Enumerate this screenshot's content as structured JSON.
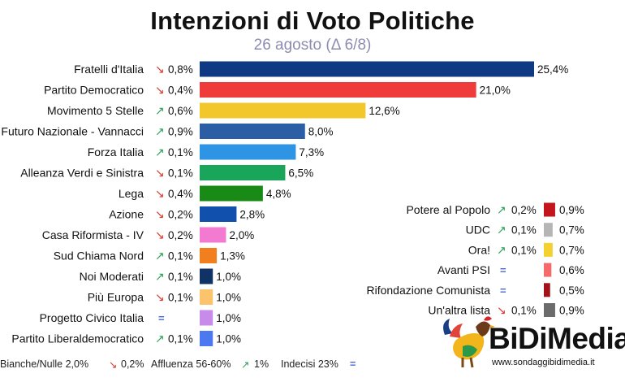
{
  "header": {
    "title": "Intenzioni di Voto Politiche",
    "subtitle": "26 agosto (Δ 6/8)"
  },
  "chart_data": [
    {
      "type": "bar",
      "orientation": "horizontal",
      "categories": [
        "Fratelli d'Italia",
        "Partito Democratico",
        "Movimento 5 Stelle",
        "Futuro Nazionale - Vannacci",
        "Forza Italia",
        "Alleanza Verdi e Sinistra",
        "Lega",
        "Azione",
        "Casa Riformista - IV",
        "Sud Chiama Nord",
        "Noi Moderati",
        "Più Europa",
        "Progetto Civico Italia",
        "Partito Liberaldemocratico"
      ],
      "values": [
        25.4,
        21.0,
        12.6,
        8.0,
        7.3,
        6.5,
        4.8,
        2.8,
        2.0,
        1.3,
        1.0,
        1.0,
        1.0,
        1.0
      ],
      "value_labels": [
        "25,4%",
        "21,0%",
        "12,6%",
        "8,0%",
        "7,3%",
        "6,5%",
        "4,8%",
        "2,8%",
        "2,0%",
        "1,3%",
        "1,0%",
        "1,0%",
        "1,0%",
        "1,0%"
      ],
      "delta_direction": [
        "down",
        "down",
        "up",
        "up",
        "up",
        "down",
        "down",
        "down",
        "down",
        "up",
        "up",
        "down",
        "flat",
        "up"
      ],
      "delta_labels": [
        "0,8%",
        "0,4%",
        "0,6%",
        "0,9%",
        "0,1%",
        "0,1%",
        "0,4%",
        "0,2%",
        "0,2%",
        "0,1%",
        "0,1%",
        "0,1%",
        "",
        "0,1%"
      ],
      "colors": [
        "#0f3a83",
        "#f03b3b",
        "#f1c72b",
        "#2c5ea5",
        "#2e95e4",
        "#19a55a",
        "#188a15",
        "#1150ad",
        "#f37ad1",
        "#f27f1e",
        "#113264",
        "#fbc36c",
        "#c78bea",
        "#4c78f0"
      ]
    },
    {
      "type": "bar",
      "orientation": "horizontal",
      "categories": [
        "Potere al Popolo",
        "UDC",
        "Ora!",
        "Avanti PSI",
        "Rifondazione Comunista",
        "Un'altra lista"
      ],
      "values": [
        0.9,
        0.7,
        0.7,
        0.6,
        0.5,
        0.9
      ],
      "value_labels": [
        "0,9%",
        "0,7%",
        "0,7%",
        "0,6%",
        "0,5%",
        "0,9%"
      ],
      "delta_direction": [
        "up",
        "up",
        "up",
        "flat",
        "flat",
        "down"
      ],
      "delta_labels": [
        "0,2%",
        "0,1%",
        "0,1%",
        "",
        "",
        "0,1%"
      ],
      "colors": [
        "#c3151c",
        "#b5b5b5",
        "#f3d230",
        "#f56a6a",
        "#a3121b",
        "#6b6b6b"
      ]
    }
  ],
  "footer": {
    "blank_label": "Bianche/Nulle 2,0%",
    "blank_delta": "0,2%",
    "turnout_label": "Affluenza 56-60%",
    "turnout_delta": "1%",
    "undecided_label": "Indecisi 23%"
  },
  "logo": {
    "name": "BiDiMedia",
    "url": "www.sondaggibidimedia.it"
  },
  "colors": {
    "up_arrow": "#2aa05a",
    "down_arrow": "#d83a2e",
    "flat_mark": "#4a67d8"
  }
}
